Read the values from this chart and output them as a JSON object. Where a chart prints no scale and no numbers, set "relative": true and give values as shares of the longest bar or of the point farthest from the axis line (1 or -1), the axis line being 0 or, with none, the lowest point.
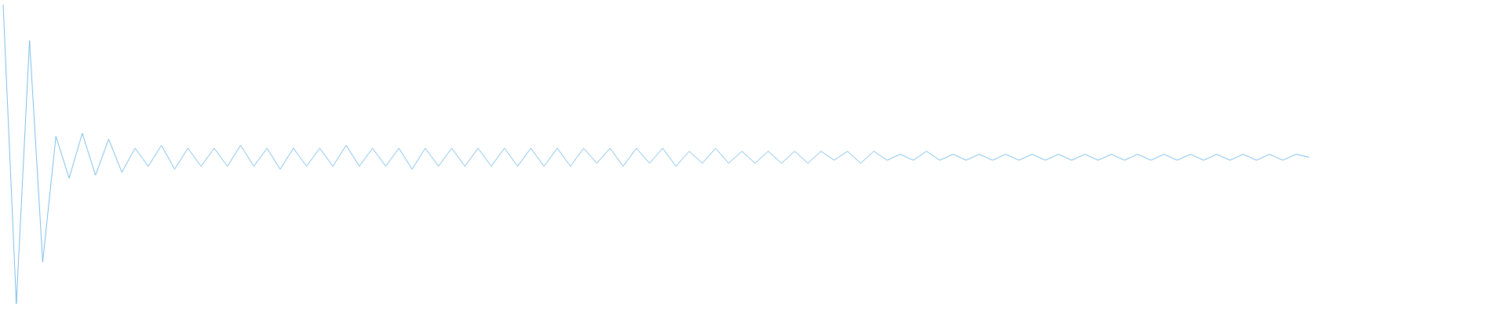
{
  "chart_data": {
    "type": "line",
    "relative": true,
    "color": "#5aace4",
    "categories": [
      null,
      null,
      null,
      null,
      null,
      null,
      null,
      null,
      null,
      null,
      null,
      null,
      null,
      null,
      null,
      null,
      null,
      null,
      null,
      null,
      null,
      null,
      null,
      null,
      null,
      null,
      null,
      null,
      null,
      null,
      null,
      null,
      null,
      null,
      null,
      null,
      null,
      null,
      null,
      null,
      null,
      null,
      null,
      null,
      null,
      null,
      null,
      null,
      null,
      null,
      null,
      null,
      null,
      null,
      null,
      null,
      null,
      null,
      null,
      null,
      null,
      null,
      null,
      null,
      null,
      null,
      null,
      null,
      null,
      null,
      null,
      null,
      null,
      null,
      null,
      null,
      null,
      null,
      null,
      null,
      null,
      null,
      null,
      null,
      null,
      null,
      null,
      null,
      null,
      null,
      null,
      null,
      null,
      null,
      null,
      null,
      null,
      null,
      null,
      null
    ],
    "values": [
      1.0,
      0.0,
      0.88,
      0.14,
      0.56,
      0.42,
      0.57,
      0.43,
      0.55,
      0.44,
      0.52,
      0.46,
      0.53,
      0.45,
      0.52,
      0.46,
      0.52,
      0.46,
      0.53,
      0.46,
      0.52,
      0.45,
      0.52,
      0.46,
      0.52,
      0.46,
      0.53,
      0.46,
      0.52,
      0.46,
      0.52,
      0.45,
      0.52,
      0.46,
      0.52,
      0.46,
      0.52,
      0.46,
      0.52,
      0.46,
      0.52,
      0.46,
      0.52,
      0.46,
      0.52,
      0.47,
      0.52,
      0.46,
      0.52,
      0.47,
      0.52,
      0.46,
      0.51,
      0.47,
      0.52,
      0.47,
      0.51,
      0.47,
      0.51,
      0.47,
      0.51,
      0.47,
      0.51,
      0.48,
      0.51,
      0.47,
      0.51,
      0.48,
      0.5,
      0.48,
      0.51,
      0.48,
      0.5,
      0.48,
      0.5,
      0.48,
      0.5,
      0.48,
      0.5,
      0.48,
      0.5,
      0.48,
      0.5,
      0.48,
      0.5,
      0.48,
      0.5,
      0.48,
      0.5,
      0.48,
      0.5,
      0.48,
      0.5,
      0.48,
      0.5,
      0.48,
      0.5,
      0.48,
      0.5,
      0.49
    ]
  }
}
